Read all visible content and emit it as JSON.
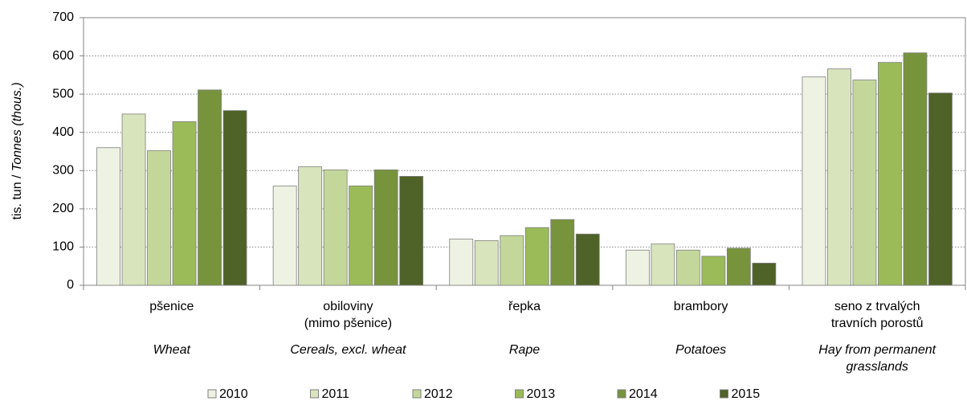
{
  "chart_data": {
    "type": "bar",
    "ylabel": "tis. tun / ",
    "ylabel_en": "Tonnes (thous.)",
    "categories": [
      [
        "pšenice"
      ],
      [
        "obiloviny",
        "(mimo pšenice)"
      ],
      [
        "řepka"
      ],
      [
        "brambory"
      ],
      [
        "seno z trvalých",
        "travních porostů"
      ]
    ],
    "categories_en": [
      [
        "Wheat"
      ],
      [
        "Cereals, excl. wheat"
      ],
      [
        "Rape"
      ],
      [
        "Potatoes"
      ],
      [
        "Hay from permanent",
        "grasslands"
      ]
    ],
    "series": [
      {
        "name": "2010",
        "color": "#eef2e2",
        "values": [
          360,
          260,
          121,
          92,
          545
        ]
      },
      {
        "name": "2011",
        "color": "#d8e4bc",
        "values": [
          448,
          310,
          117,
          108,
          566
        ]
      },
      {
        "name": "2012",
        "color": "#c4d79b",
        "values": [
          352,
          302,
          130,
          92,
          537
        ]
      },
      {
        "name": "2013",
        "color": "#9bbb59",
        "values": [
          428,
          260,
          151,
          76,
          583
        ]
      },
      {
        "name": "2014",
        "color": "#77933c",
        "values": [
          511,
          302,
          172,
          97,
          608
        ]
      },
      {
        "name": "2015",
        "color": "#4f6228",
        "values": [
          457,
          285,
          134,
          58,
          503
        ]
      }
    ],
    "ylim": [
      0,
      700
    ],
    "yticks": [
      0,
      100,
      200,
      300,
      400,
      500,
      600,
      700
    ],
    "grid": true
  }
}
